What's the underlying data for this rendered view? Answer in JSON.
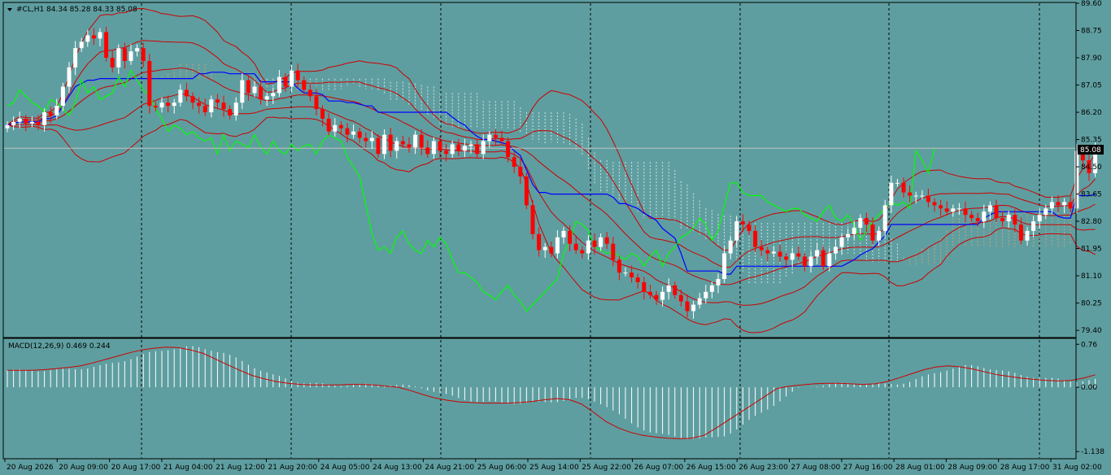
{
  "header": {
    "symbol_line": "#CL,H1  84.34 85.28 84.33 85.08"
  },
  "macd_label": "MACD(12,26,9) 0.469 0.244",
  "current_price_label": "85.08",
  "colors": {
    "background": "#5f9ea0",
    "bull_candle": "#ffffff",
    "bear_candle": "#ff0000",
    "bollinger": "#cc0000",
    "kijun": "#0000ff",
    "chikou": "#00ff00",
    "cloud_bull": "#f4a460",
    "cloud_bear": "#ffffff",
    "macd_hist": "#ffffff",
    "macd_signal": "#cc0000"
  },
  "chart_data": {
    "type": "candlestick",
    "price_axis": {
      "ticks": [
        "89.60",
        "88.75",
        "87.90",
        "87.05",
        "86.20",
        "85.35",
        "84.50",
        "83.65",
        "82.80",
        "81.95",
        "81.10",
        "80.25",
        "79.40"
      ],
      "range": [
        79.2,
        89.6
      ]
    },
    "macd_axis": {
      "ticks": [
        "0.76",
        "0.00",
        "-1.138"
      ],
      "range": [
        -1.25,
        0.85
      ]
    },
    "time_ticks": [
      "20 Aug 2026",
      "20 Aug 09:00",
      "20 Aug 17:00",
      "21 Aug 04:00",
      "21 Aug 12:00",
      "21 Aug 20:00",
      "24 Aug 05:00",
      "24 Aug 13:00",
      "24 Aug 21:00",
      "25 Aug 06:00",
      "25 Aug 14:00",
      "25 Aug 22:00",
      "26 Aug 07:00",
      "26 Aug 15:00",
      "26 Aug 23:00",
      "27 Aug 08:00",
      "27 Aug 16:00",
      "28 Aug 01:00",
      "28 Aug 09:00",
      "28 Aug 17:00",
      "31 Aug 02:00"
    ],
    "separators": [
      174,
      358,
      542,
      726,
      910,
      1093,
      1278
    ],
    "current_price": 85.08,
    "closes": [
      85.8,
      85.9,
      86.0,
      85.85,
      85.9,
      85.8,
      86.2,
      86.1,
      86.4,
      87.0,
      87.6,
      88.2,
      88.4,
      88.6,
      88.5,
      88.7,
      87.9,
      87.6,
      88.2,
      87.8,
      88.1,
      88.2,
      87.8,
      86.4,
      86.35,
      86.5,
      86.4,
      86.5,
      86.9,
      86.7,
      86.5,
      86.4,
      86.2,
      86.6,
      86.5,
      86.3,
      86.1,
      86.5,
      87.2,
      86.8,
      87.0,
      86.6,
      86.7,
      86.8,
      87.3,
      87.0,
      87.5,
      87.2,
      86.9,
      86.7,
      86.3,
      86.0,
      85.6,
      85.8,
      85.7,
      85.5,
      85.6,
      85.4,
      85.3,
      85.4,
      84.9,
      85.5,
      85.0,
      85.3,
      85.2,
      85.1,
      85.5,
      85.1,
      84.9,
      85.3,
      85.0,
      84.9,
      85.2,
      85.0,
      85.15,
      85.2,
      84.9,
      85.3,
      85.5,
      85.4,
      85.3,
      84.8,
      84.5,
      84.2,
      83.3,
      82.4,
      81.9,
      82.0,
      81.8,
      82.3,
      82.5,
      82.1,
      81.9,
      81.8,
      82.2,
      82.0,
      82.3,
      82.1,
      81.6,
      81.2,
      81.2,
      81.05,
      80.9,
      80.6,
      80.5,
      80.35,
      80.6,
      80.8,
      80.5,
      80.3,
      80.0,
      80.2,
      80.4,
      80.6,
      80.8,
      81.0,
      81.8,
      82.2,
      82.8,
      82.7,
      82.5,
      82.0,
      81.9,
      81.8,
      81.85,
      81.7,
      81.6,
      81.8,
      81.7,
      81.4,
      81.7,
      81.9,
      81.4,
      81.8,
      82.0,
      82.3,
      82.4,
      82.6,
      82.9,
      82.7,
      82.2,
      82.5,
      83.3,
      84.0,
      84.0,
      83.7,
      83.6,
      83.6,
      83.6,
      83.4,
      83.3,
      83.2,
      83.1,
      83.2,
      83.2,
      83.0,
      82.9,
      82.8,
      83.1,
      83.3,
      82.9,
      82.8,
      83.0,
      82.7,
      82.2,
      82.5,
      82.8,
      83.0,
      83.2,
      83.4,
      83.3,
      83.4,
      83.2,
      85.0,
      84.7,
      84.3,
      85.08
    ],
    "macd_signal": [
      0.3,
      0.3,
      0.3,
      0.31,
      0.33,
      0.35,
      0.38,
      0.43,
      0.49,
      0.55,
      0.61,
      0.66,
      0.69,
      0.71,
      0.7,
      0.66,
      0.6,
      0.5,
      0.4,
      0.3,
      0.21,
      0.15,
      0.1,
      0.07,
      0.05,
      0.04,
      0.04,
      0.04,
      0.05,
      0.05,
      0.04,
      0.02,
      0.0,
      -0.06,
      -0.13,
      -0.19,
      -0.23,
      -0.26,
      -0.27,
      -0.28,
      -0.28,
      -0.28,
      -0.27,
      -0.25,
      -0.22,
      -0.2,
      -0.22,
      -0.3,
      -0.45,
      -0.61,
      -0.72,
      -0.8,
      -0.85,
      -0.88,
      -0.9,
      -0.91,
      -0.9,
      -0.85,
      -0.72,
      -0.58,
      -0.44,
      -0.3,
      -0.16,
      -0.02,
      0.02,
      0.04,
      0.06,
      0.07,
      0.07,
      0.06,
      0.05,
      0.06,
      0.1,
      0.17,
      0.24,
      0.31,
      0.36,
      0.38,
      0.36,
      0.32,
      0.27,
      0.22,
      0.19,
      0.16,
      0.14,
      0.12,
      0.11,
      0.12,
      0.16,
      0.22
    ]
  }
}
